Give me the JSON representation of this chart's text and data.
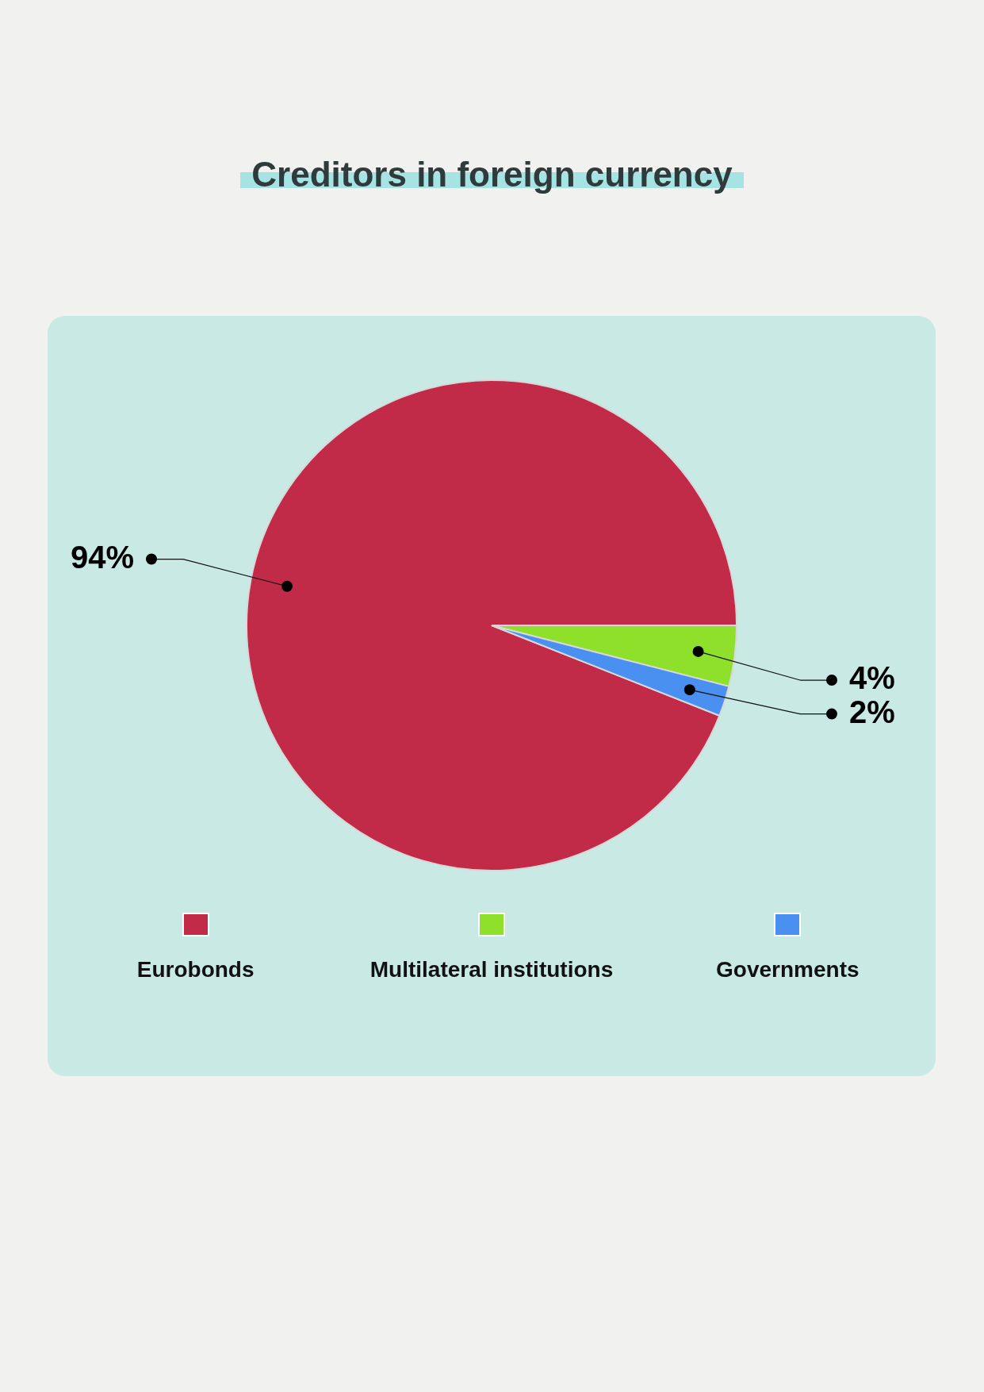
{
  "chart_data": {
    "type": "pie",
    "title": "Creditors in foreign currency",
    "categories": [
      "Eurobonds",
      "Multilateral institutions",
      "Governments"
    ],
    "values": [
      94,
      4,
      2
    ],
    "colors": [
      "#c12b48",
      "#8ee02a",
      "#4a90f0"
    ],
    "value_labels": [
      "94%",
      "4%",
      "2%"
    ],
    "legend": "bottom"
  }
}
